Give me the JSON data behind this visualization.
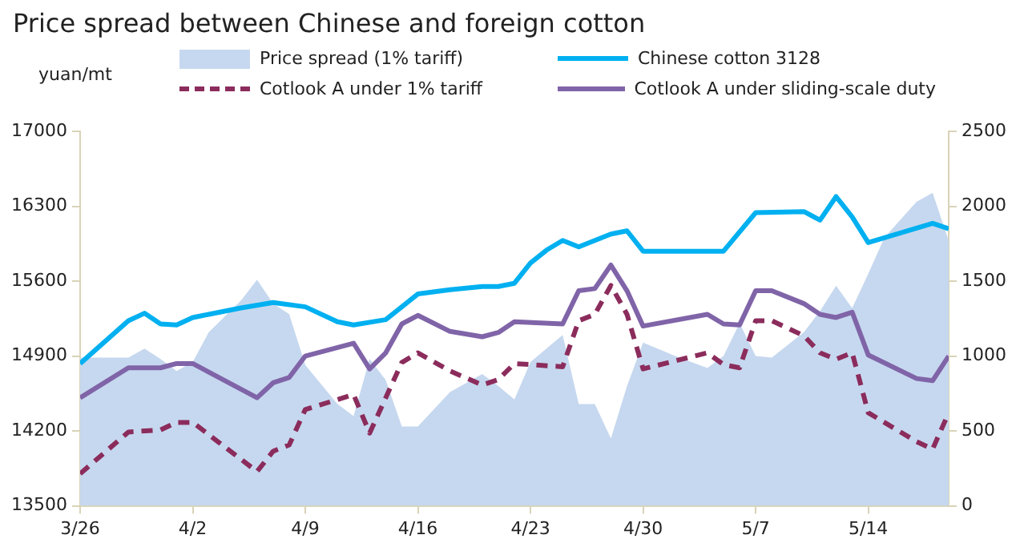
{
  "chart_data": {
    "type": "line",
    "title": "Price spread between Chinese and foreign cotton",
    "ylabel": "yuan/mt",
    "xlim": [
      "--03-26",
      "--05-19"
    ],
    "xticks": [
      {
        "value": "--03-26",
        "label": "3/26"
      },
      {
        "value": "--04-02",
        "label": "4/2"
      },
      {
        "value": "--04-09",
        "label": "4/9"
      },
      {
        "value": "--04-16",
        "label": "4/16"
      },
      {
        "value": "--04-23",
        "label": "4/23"
      },
      {
        "value": "--04-30",
        "label": "4/30"
      },
      {
        "value": "--05-07",
        "label": "5/7"
      },
      {
        "value": "--05-14",
        "label": "5/14"
      }
    ],
    "ylim": [
      13500,
      17000
    ],
    "yticks": [
      13500,
      14200,
      14900,
      15600,
      16300,
      17000
    ],
    "y2lim": [
      0,
      2500
    ],
    "y2ticks": [
      0,
      500,
      1000,
      1500,
      2000,
      2500
    ],
    "grid": false,
    "legend": "top",
    "marker": "none",
    "series": [
      {
        "name": "Price spread (1% tariff)",
        "type": "area",
        "axis": "y2",
        "color": "#c6d8ef",
        "x": [
          "--03-26",
          "--03-29",
          "--03-30",
          "--03-31",
          "--04-01",
          "--04-02",
          "--04-03",
          "--04-05",
          "--04-06",
          "--04-07",
          "--04-08",
          "--04-09",
          "--04-11",
          "--04-12",
          "--04-13",
          "--04-14",
          "--04-15",
          "--04-16",
          "--04-18",
          "--04-20",
          "--04-21",
          "--04-22",
          "--04-23",
          "--04-25",
          "--04-26",
          "--04-27",
          "--04-28",
          "--04-29",
          "--04-30",
          "--05-02",
          "--05-04",
          "--05-05",
          "--05-06",
          "--05-07",
          "--05-08",
          "--05-10",
          "--05-11",
          "--05-12",
          "--05-13",
          "--05-14",
          "--05-15",
          "--05-17",
          "--05-18",
          "--05-19"
        ],
        "values": [
          990,
          990,
          1050,
          980,
          900,
          960,
          1160,
          1370,
          1510,
          1350,
          1280,
          940,
          680,
          600,
          980,
          840,
          530,
          530,
          760,
          880,
          800,
          710,
          960,
          1140,
          680,
          680,
          450,
          800,
          1090,
          1000,
          920,
          1000,
          1220,
          1000,
          990,
          1160,
          1300,
          1470,
          1320,
          1550,
          1790,
          2030,
          2090,
          1770
        ]
      },
      {
        "name": "Chinese cotton 3128",
        "type": "line",
        "color": "#00b0f0",
        "line_style": "solid",
        "x": [
          "--03-26",
          "--03-29",
          "--03-30",
          "--03-31",
          "--04-01",
          "--04-02",
          "--04-03",
          "--04-05",
          "--04-07",
          "--04-09",
          "--04-11",
          "--04-12",
          "--04-14",
          "--04-16",
          "--04-18",
          "--04-20",
          "--04-21",
          "--04-22",
          "--04-23",
          "--04-24",
          "--04-25",
          "--04-26",
          "--04-27",
          "--04-28",
          "--04-29",
          "--04-30",
          "--05-03",
          "--05-05",
          "--05-07",
          "--05-10",
          "--05-11",
          "--05-12",
          "--05-13",
          "--05-14",
          "--05-18",
          "--05-19"
        ],
        "values": [
          14830,
          15230,
          15300,
          15200,
          15190,
          15260,
          15290,
          15350,
          15400,
          15360,
          15220,
          15190,
          15240,
          15480,
          15520,
          15550,
          15550,
          15580,
          15770,
          15890,
          15980,
          15920,
          15980,
          16040,
          16070,
          15880,
          15880,
          15880,
          16240,
          16250,
          16170,
          16390,
          16200,
          15960,
          16140,
          16090
        ]
      },
      {
        "name": "Cotlook A under 1% tariff",
        "type": "line",
        "color": "#8b2c5c",
        "line_style": "dashed",
        "x": [
          "--03-26",
          "--03-29",
          "--03-31",
          "--04-01",
          "--04-02",
          "--04-06",
          "--04-07",
          "--04-08",
          "--04-09",
          "--04-12",
          "--04-13",
          "--04-14",
          "--04-15",
          "--04-16",
          "--04-18",
          "--04-20",
          "--04-21",
          "--04-22",
          "--04-25",
          "--04-26",
          "--04-27",
          "--04-28",
          "--04-29",
          "--04-30",
          "--05-04",
          "--05-05",
          "--05-06",
          "--05-07",
          "--05-08",
          "--05-10",
          "--05-11",
          "--05-12",
          "--05-13",
          "--05-14",
          "--05-17",
          "--05-18",
          "--05-19"
        ],
        "values": [
          13800,
          14190,
          14210,
          14280,
          14280,
          13820,
          14010,
          14070,
          14400,
          14540,
          14180,
          14510,
          14840,
          14930,
          14760,
          14630,
          14680,
          14830,
          14800,
          15230,
          15290,
          15560,
          15290,
          14780,
          14930,
          14820,
          14790,
          15230,
          15230,
          15090,
          14930,
          14870,
          14930,
          14370,
          14100,
          14030,
          14370
        ]
      },
      {
        "name": "Cotlook A under sliding-scale duty",
        "type": "line",
        "color": "#8064a8",
        "line_style": "solid",
        "x": [
          "--03-26",
          "--03-29",
          "--03-31",
          "--04-01",
          "--04-02",
          "--04-06",
          "--04-07",
          "--04-08",
          "--04-09",
          "--04-12",
          "--04-13",
          "--04-14",
          "--04-15",
          "--04-16",
          "--04-18",
          "--04-20",
          "--04-21",
          "--04-22",
          "--04-25",
          "--04-26",
          "--04-27",
          "--04-28",
          "--04-29",
          "--04-30",
          "--05-04",
          "--05-05",
          "--05-06",
          "--05-07",
          "--05-08",
          "--05-10",
          "--05-11",
          "--05-12",
          "--05-13",
          "--05-14",
          "--05-17",
          "--05-18",
          "--05-19"
        ],
        "values": [
          14510,
          14790,
          14790,
          14830,
          14830,
          14510,
          14650,
          14700,
          14900,
          15020,
          14780,
          14930,
          15200,
          15280,
          15130,
          15080,
          15120,
          15220,
          15200,
          15510,
          15530,
          15750,
          15510,
          15180,
          15290,
          15200,
          15190,
          15510,
          15510,
          15390,
          15290,
          15260,
          15310,
          14910,
          14690,
          14670,
          14900
        ]
      }
    ]
  }
}
